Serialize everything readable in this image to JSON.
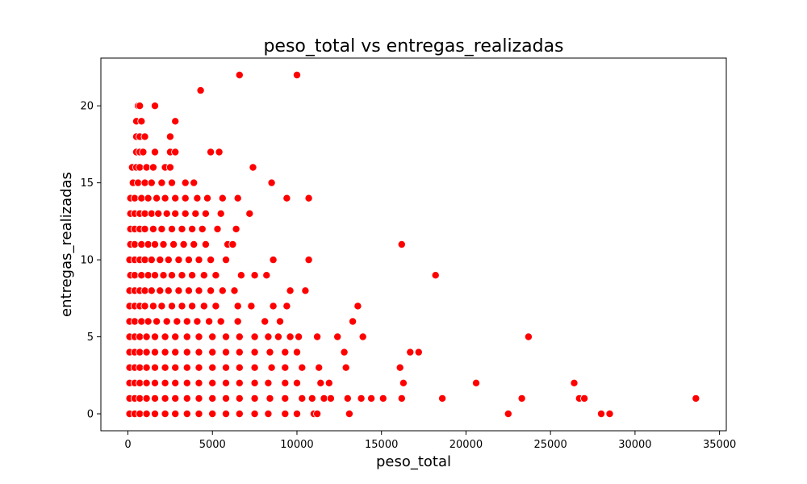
{
  "chart_data": {
    "type": "scatter",
    "title": "peso_total vs entregas_realizadas",
    "xlabel": "peso_total",
    "ylabel": "entregas_realizadas",
    "xlim": [
      -1600,
      35400
    ],
    "ylim": [
      -1.1,
      23.1
    ],
    "xticks": [
      0,
      5000,
      10000,
      15000,
      20000,
      25000,
      30000,
      35000
    ],
    "yticks": [
      0,
      5,
      10,
      15,
      20
    ],
    "xtick_labels": [
      "0",
      "5000",
      "10000",
      "15000",
      "20000",
      "25000",
      "30000",
      "35000"
    ],
    "ytick_labels": [
      "0",
      "5",
      "10",
      "15",
      "20"
    ],
    "grid": false,
    "marker_color": "#ff0000",
    "marker_edge_color": "#ffffff",
    "points": [
      [
        4300,
        21
      ],
      [
        6600,
        22
      ],
      [
        10000,
        22
      ],
      [
        600,
        20
      ],
      [
        700,
        20
      ],
      [
        1600,
        20
      ],
      [
        500,
        19
      ],
      [
        800,
        19
      ],
      [
        2800,
        19
      ],
      [
        500,
        18
      ],
      [
        700,
        18
      ],
      [
        1000,
        18
      ],
      [
        2500,
        18
      ],
      [
        500,
        17
      ],
      [
        700,
        17
      ],
      [
        900,
        17
      ],
      [
        1600,
        17
      ],
      [
        2500,
        17
      ],
      [
        2800,
        17
      ],
      [
        4900,
        17
      ],
      [
        5400,
        17
      ],
      [
        250,
        16
      ],
      [
        500,
        16
      ],
      [
        700,
        16
      ],
      [
        1100,
        16
      ],
      [
        1500,
        16
      ],
      [
        2200,
        16
      ],
      [
        2500,
        16
      ],
      [
        7400,
        16
      ],
      [
        300,
        15
      ],
      [
        600,
        15
      ],
      [
        1000,
        15
      ],
      [
        1400,
        15
      ],
      [
        2000,
        15
      ],
      [
        2600,
        15
      ],
      [
        3400,
        15
      ],
      [
        3900,
        15
      ],
      [
        8500,
        15
      ],
      [
        150,
        14
      ],
      [
        400,
        14
      ],
      [
        800,
        14
      ],
      [
        1200,
        14
      ],
      [
        1700,
        14
      ],
      [
        2200,
        14
      ],
      [
        2800,
        14
      ],
      [
        3400,
        14
      ],
      [
        4100,
        14
      ],
      [
        4700,
        14
      ],
      [
        5600,
        14
      ],
      [
        6500,
        14
      ],
      [
        9400,
        14
      ],
      [
        10700,
        14
      ],
      [
        150,
        13
      ],
      [
        400,
        13
      ],
      [
        700,
        13
      ],
      [
        1000,
        13
      ],
      [
        1400,
        13
      ],
      [
        1800,
        13
      ],
      [
        2300,
        13
      ],
      [
        2800,
        13
      ],
      [
        3400,
        13
      ],
      [
        4000,
        13
      ],
      [
        4600,
        13
      ],
      [
        5500,
        13
      ],
      [
        7200,
        13
      ],
      [
        150,
        12
      ],
      [
        400,
        12
      ],
      [
        700,
        12
      ],
      [
        1000,
        12
      ],
      [
        1500,
        12
      ],
      [
        2000,
        12
      ],
      [
        2600,
        12
      ],
      [
        3200,
        12
      ],
      [
        3800,
        12
      ],
      [
        4400,
        12
      ],
      [
        5300,
        12
      ],
      [
        6400,
        12
      ],
      [
        150,
        11
      ],
      [
        400,
        11
      ],
      [
        800,
        11
      ],
      [
        1200,
        11
      ],
      [
        1600,
        11
      ],
      [
        2100,
        11
      ],
      [
        2700,
        11
      ],
      [
        3300,
        11
      ],
      [
        3900,
        11
      ],
      [
        4600,
        11
      ],
      [
        5900,
        11
      ],
      [
        6200,
        11
      ],
      [
        16200,
        11
      ],
      [
        100,
        10
      ],
      [
        400,
        10
      ],
      [
        700,
        10
      ],
      [
        1000,
        10
      ],
      [
        1400,
        10
      ],
      [
        1900,
        10
      ],
      [
        2400,
        10
      ],
      [
        3000,
        10
      ],
      [
        3600,
        10
      ],
      [
        4200,
        10
      ],
      [
        4900,
        10
      ],
      [
        5800,
        10
      ],
      [
        8600,
        10
      ],
      [
        10700,
        10
      ],
      [
        150,
        9
      ],
      [
        400,
        9
      ],
      [
        800,
        9
      ],
      [
        1200,
        9
      ],
      [
        1600,
        9
      ],
      [
        2100,
        9
      ],
      [
        2600,
        9
      ],
      [
        3200,
        9
      ],
      [
        3800,
        9
      ],
      [
        4500,
        9
      ],
      [
        5200,
        9
      ],
      [
        6700,
        9
      ],
      [
        7500,
        9
      ],
      [
        8200,
        9
      ],
      [
        18200,
        9
      ],
      [
        100,
        8
      ],
      [
        400,
        8
      ],
      [
        700,
        8
      ],
      [
        1000,
        8
      ],
      [
        1400,
        8
      ],
      [
        1900,
        8
      ],
      [
        2400,
        8
      ],
      [
        3000,
        8
      ],
      [
        3600,
        8
      ],
      [
        4200,
        8
      ],
      [
        4900,
        8
      ],
      [
        5600,
        8
      ],
      [
        6300,
        8
      ],
      [
        9600,
        8
      ],
      [
        10500,
        8
      ],
      [
        100,
        7
      ],
      [
        400,
        7
      ],
      [
        700,
        7
      ],
      [
        1000,
        7
      ],
      [
        1500,
        7
      ],
      [
        2000,
        7
      ],
      [
        2600,
        7
      ],
      [
        3200,
        7
      ],
      [
        3800,
        7
      ],
      [
        4500,
        7
      ],
      [
        5200,
        7
      ],
      [
        6500,
        7
      ],
      [
        7300,
        7
      ],
      [
        8600,
        7
      ],
      [
        9400,
        7
      ],
      [
        13600,
        7
      ],
      [
        100,
        6
      ],
      [
        400,
        6
      ],
      [
        800,
        6
      ],
      [
        1200,
        6
      ],
      [
        1700,
        6
      ],
      [
        2300,
        6
      ],
      [
        2900,
        6
      ],
      [
        3500,
        6
      ],
      [
        4100,
        6
      ],
      [
        4800,
        6
      ],
      [
        5500,
        6
      ],
      [
        6500,
        6
      ],
      [
        8100,
        6
      ],
      [
        9000,
        6
      ],
      [
        13300,
        6
      ],
      [
        100,
        5
      ],
      [
        400,
        5
      ],
      [
        700,
        5
      ],
      [
        1100,
        5
      ],
      [
        1600,
        5
      ],
      [
        2200,
        5
      ],
      [
        2800,
        5
      ],
      [
        3500,
        5
      ],
      [
        4200,
        5
      ],
      [
        5000,
        5
      ],
      [
        5800,
        5
      ],
      [
        6600,
        5
      ],
      [
        7500,
        5
      ],
      [
        8300,
        5
      ],
      [
        8900,
        5
      ],
      [
        9600,
        5
      ],
      [
        10100,
        5
      ],
      [
        11200,
        5
      ],
      [
        12400,
        5
      ],
      [
        13900,
        5
      ],
      [
        23700,
        5
      ],
      [
        100,
        4
      ],
      [
        400,
        4
      ],
      [
        700,
        4
      ],
      [
        1100,
        4
      ],
      [
        1600,
        4
      ],
      [
        2200,
        4
      ],
      [
        2800,
        4
      ],
      [
        3500,
        4
      ],
      [
        4200,
        4
      ],
      [
        5000,
        4
      ],
      [
        5800,
        4
      ],
      [
        6600,
        4
      ],
      [
        7500,
        4
      ],
      [
        8400,
        4
      ],
      [
        9300,
        4
      ],
      [
        10000,
        4
      ],
      [
        12800,
        4
      ],
      [
        16700,
        4
      ],
      [
        17200,
        4
      ],
      [
        100,
        3
      ],
      [
        400,
        3
      ],
      [
        700,
        3
      ],
      [
        1100,
        3
      ],
      [
        1600,
        3
      ],
      [
        2200,
        3
      ],
      [
        2800,
        3
      ],
      [
        3500,
        3
      ],
      [
        4200,
        3
      ],
      [
        5000,
        3
      ],
      [
        5800,
        3
      ],
      [
        6600,
        3
      ],
      [
        7500,
        3
      ],
      [
        8500,
        3
      ],
      [
        9300,
        3
      ],
      [
        10300,
        3
      ],
      [
        11300,
        3
      ],
      [
        12900,
        3
      ],
      [
        16100,
        3
      ],
      [
        100,
        2
      ],
      [
        400,
        2
      ],
      [
        700,
        2
      ],
      [
        1100,
        2
      ],
      [
        1600,
        2
      ],
      [
        2200,
        2
      ],
      [
        2800,
        2
      ],
      [
        3500,
        2
      ],
      [
        4200,
        2
      ],
      [
        5000,
        2
      ],
      [
        5800,
        2
      ],
      [
        6600,
        2
      ],
      [
        7500,
        2
      ],
      [
        8300,
        2
      ],
      [
        9300,
        2
      ],
      [
        10000,
        2
      ],
      [
        11400,
        2
      ],
      [
        11900,
        2
      ],
      [
        16300,
        2
      ],
      [
        20600,
        2
      ],
      [
        26400,
        2
      ],
      [
        100,
        1
      ],
      [
        400,
        1
      ],
      [
        700,
        1
      ],
      [
        1100,
        1
      ],
      [
        1600,
        1
      ],
      [
        2200,
        1
      ],
      [
        2800,
        1
      ],
      [
        3500,
        1
      ],
      [
        4200,
        1
      ],
      [
        5000,
        1
      ],
      [
        5800,
        1
      ],
      [
        6600,
        1
      ],
      [
        7500,
        1
      ],
      [
        8400,
        1
      ],
      [
        9300,
        1
      ],
      [
        10300,
        1
      ],
      [
        10900,
        1
      ],
      [
        11600,
        1
      ],
      [
        12000,
        1
      ],
      [
        13000,
        1
      ],
      [
        13800,
        1
      ],
      [
        14400,
        1
      ],
      [
        15100,
        1
      ],
      [
        16200,
        1
      ],
      [
        18600,
        1
      ],
      [
        23300,
        1
      ],
      [
        26700,
        1
      ],
      [
        27000,
        1
      ],
      [
        33600,
        1
      ],
      [
        100,
        0
      ],
      [
        400,
        0
      ],
      [
        700,
        0
      ],
      [
        1100,
        0
      ],
      [
        1600,
        0
      ],
      [
        2200,
        0
      ],
      [
        2800,
        0
      ],
      [
        3500,
        0
      ],
      [
        4200,
        0
      ],
      [
        5000,
        0
      ],
      [
        5800,
        0
      ],
      [
        6600,
        0
      ],
      [
        7500,
        0
      ],
      [
        8300,
        0
      ],
      [
        9300,
        0
      ],
      [
        10000,
        0
      ],
      [
        11000,
        0
      ],
      [
        11200,
        0
      ],
      [
        13100,
        0
      ],
      [
        22500,
        0
      ],
      [
        28000,
        0
      ],
      [
        28500,
        0
      ]
    ]
  }
}
